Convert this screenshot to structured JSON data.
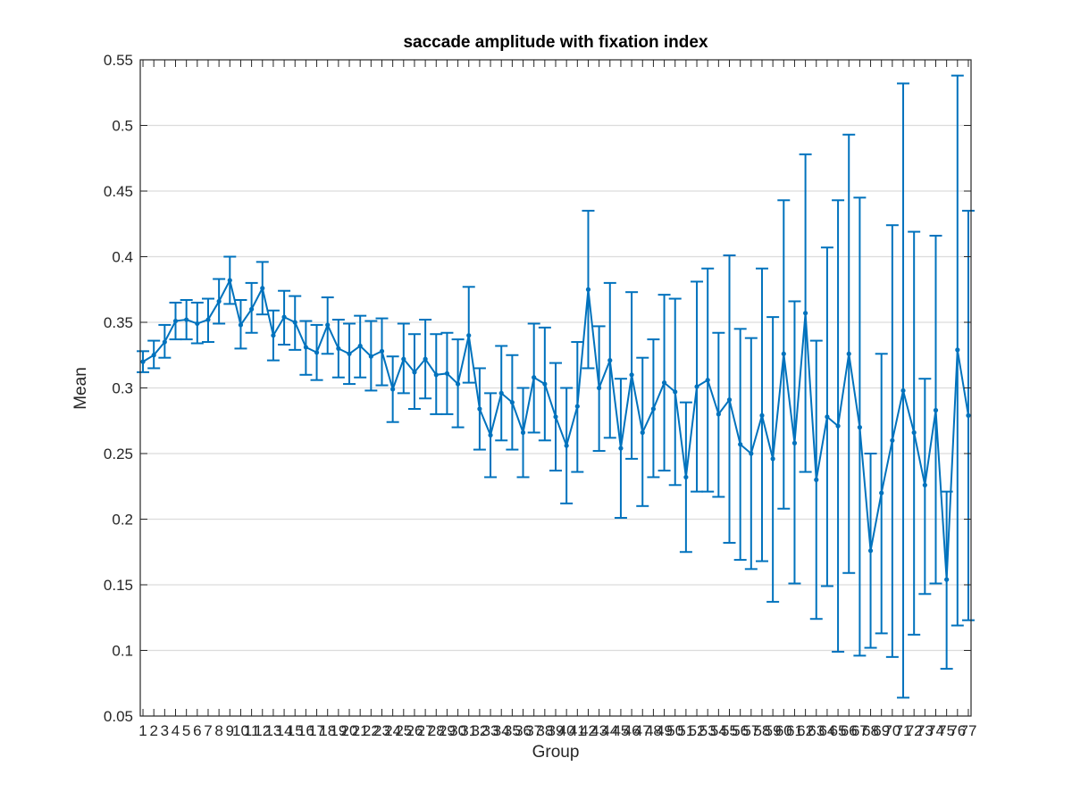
{
  "colors": {
    "series": "#0072BD",
    "axes": "#262626",
    "grid": "#dcdcdc",
    "background": "#ffffff"
  },
  "chart_data": {
    "type": "line",
    "title": "saccade amplitude with fixation index",
    "xlabel": "Group",
    "ylabel": "Mean",
    "ylim": [
      0.05,
      0.55
    ],
    "yticks": [
      "0.05",
      "0.1",
      "0.15",
      "0.2",
      "0.25",
      "0.3",
      "0.35",
      "0.4",
      "0.45",
      "0.5",
      "0.55"
    ],
    "grid": "horizontal",
    "error_bars": true,
    "x": [
      1,
      2,
      3,
      4,
      5,
      6,
      7,
      8,
      9,
      10,
      11,
      12,
      13,
      14,
      15,
      16,
      17,
      18,
      19,
      20,
      21,
      22,
      23,
      24,
      25,
      26,
      27,
      28,
      29,
      30,
      31,
      32,
      33,
      34,
      35,
      36,
      37,
      38,
      39,
      40,
      41,
      42,
      43,
      44,
      45,
      46,
      47,
      48,
      49,
      50,
      51,
      52,
      53,
      54,
      55,
      56,
      57,
      58,
      59,
      60,
      61,
      62,
      63,
      64,
      65,
      66,
      67,
      68,
      69,
      70,
      71,
      72,
      73,
      74,
      75,
      76,
      77
    ],
    "series": [
      {
        "values": [
          0.32,
          0.325,
          0.335,
          0.351,
          0.352,
          0.349,
          0.352,
          0.366,
          0.382,
          0.348,
          0.36,
          0.376,
          0.34,
          0.354,
          0.35,
          0.331,
          0.327,
          0.348,
          0.33,
          0.326,
          0.332,
          0.324,
          0.328,
          0.299,
          0.322,
          0.312,
          0.322,
          0.31,
          0.311,
          0.303,
          0.34,
          0.284,
          0.264,
          0.296,
          0.289,
          0.266,
          0.308,
          0.303,
          0.278,
          0.256,
          0.286,
          0.375,
          0.3,
          0.321,
          0.254,
          0.31,
          0.266,
          0.284,
          0.304,
          0.297,
          0.232,
          0.301,
          0.306,
          0.28,
          0.291,
          0.257,
          0.25,
          0.279,
          0.246,
          0.326,
          0.258,
          0.357,
          0.23,
          0.278,
          0.271,
          0.326,
          0.27,
          0.176,
          0.22,
          0.26,
          0.298,
          0.266,
          0.226,
          0.283,
          0.154,
          0.329,
          0.279
        ],
        "lower": [
          0.312,
          0.315,
          0.323,
          0.337,
          0.337,
          0.334,
          0.335,
          0.349,
          0.364,
          0.33,
          0.342,
          0.356,
          0.321,
          0.333,
          0.329,
          0.31,
          0.306,
          0.326,
          0.308,
          0.303,
          0.308,
          0.298,
          0.302,
          0.274,
          0.296,
          0.284,
          0.292,
          0.28,
          0.28,
          0.27,
          0.304,
          0.253,
          0.232,
          0.26,
          0.253,
          0.232,
          0.266,
          0.26,
          0.237,
          0.212,
          0.236,
          0.315,
          0.252,
          0.262,
          0.201,
          0.246,
          0.21,
          0.232,
          0.237,
          0.226,
          0.175,
          0.221,
          0.221,
          0.217,
          0.182,
          0.169,
          0.162,
          0.168,
          0.137,
          0.208,
          0.151,
          0.236,
          0.124,
          0.149,
          0.099,
          0.159,
          0.096,
          0.102,
          0.113,
          0.095,
          0.064,
          0.112,
          0.143,
          0.151,
          0.086,
          0.119,
          0.123
        ],
        "upper": [
          0.328,
          0.336,
          0.348,
          0.365,
          0.367,
          0.365,
          0.368,
          0.383,
          0.4,
          0.367,
          0.38,
          0.396,
          0.359,
          0.374,
          0.37,
          0.351,
          0.348,
          0.369,
          0.352,
          0.349,
          0.355,
          0.351,
          0.353,
          0.324,
          0.349,
          0.341,
          0.352,
          0.341,
          0.342,
          0.337,
          0.377,
          0.315,
          0.296,
          0.332,
          0.325,
          0.3,
          0.349,
          0.346,
          0.319,
          0.3,
          0.335,
          0.435,
          0.347,
          0.38,
          0.307,
          0.373,
          0.323,
          0.337,
          0.371,
          0.368,
          0.289,
          0.381,
          0.391,
          0.342,
          0.401,
          0.345,
          0.338,
          0.391,
          0.354,
          0.443,
          0.366,
          0.478,
          0.336,
          0.407,
          0.443,
          0.493,
          0.445,
          0.25,
          0.326,
          0.424,
          0.532,
          0.419,
          0.307,
          0.416,
          0.221,
          0.538,
          0.435
        ]
      }
    ]
  }
}
